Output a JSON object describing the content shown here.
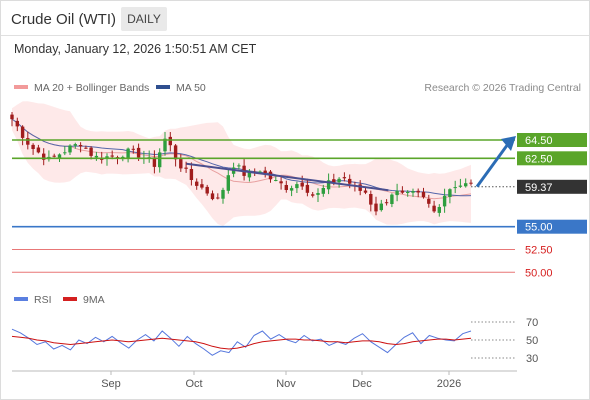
{
  "header": {
    "title": "Crude Oil (WTI)",
    "timeframe_badge": "DAILY",
    "timestamp": "Monday, January 12, 2026 1:50:51 AM CET"
  },
  "legend": {
    "ma20_label": "MA 20 + Bollinger Bands",
    "ma50_label": "MA 50",
    "credit": "Research © 2026 Trading Central",
    "rsi_label": "RSI",
    "rsi_ma_label": "9MA"
  },
  "colors": {
    "up_candle": "#2e9e3e",
    "down_candle": "#a01d1d",
    "bollinger_fill": "#fde2e2",
    "ma20": "#e8a0a0",
    "ma50": "#5566aa",
    "trendline": "#4a4f8f",
    "resistance": "#5aa52a",
    "pivot": "#3a77c8",
    "support": "#e87777",
    "price_box": "#333333",
    "arrow": "#2b6cb5",
    "rsi_line": "#5577dd",
    "rsi_ma_line": "#cc1111"
  },
  "chart_data": [
    {
      "type": "candlestick",
      "timeframe": "daily",
      "x_axis_labels": [
        "Sep",
        "Oct",
        "Nov",
        "Dec",
        "2026"
      ],
      "ylim": [
        48.5,
        69
      ],
      "grid": false,
      "levels": [
        {
          "value": 64.5,
          "label": "64.50",
          "kind": "resistance"
        },
        {
          "value": 62.5,
          "label": "62.50",
          "kind": "resistance"
        },
        {
          "value": 59.37,
          "label": "59.37",
          "kind": "last_price"
        },
        {
          "value": 55.0,
          "label": "55.00",
          "kind": "pivot"
        },
        {
          "value": 52.5,
          "label": "52.50",
          "kind": "support"
        },
        {
          "value": 50.0,
          "label": "50.00",
          "kind": "support"
        }
      ],
      "trendline": {
        "from": [
          61.9,
          0.38
        ],
        "to": [
          59.0,
          0.82
        ]
      },
      "forecast_arrow": {
        "from_value": 59.4,
        "to_value": 64.5,
        "direction": "up"
      },
      "series": [
        {
          "name": "MA 20 + Bollinger Bands",
          "kind": "ma20_bands"
        },
        {
          "name": "MA 50",
          "kind": "ma50"
        }
      ],
      "ohlc_path": [
        [
          0.0,
          66.8
        ],
        [
          0.04,
          63.8
        ],
        [
          0.08,
          62.3
        ],
        [
          0.12,
          63.5
        ],
        [
          0.15,
          64.2
        ],
        [
          0.18,
          62.6
        ],
        [
          0.22,
          62.7
        ],
        [
          0.25,
          63.2
        ],
        [
          0.28,
          62.9
        ],
        [
          0.31,
          61.8
        ],
        [
          0.335,
          64.8
        ],
        [
          0.36,
          62.2
        ],
        [
          0.39,
          60.2
        ],
        [
          0.42,
          59.0
        ],
        [
          0.45,
          57.8
        ],
        [
          0.48,
          62.0
        ],
        [
          0.51,
          60.6
        ],
        [
          0.54,
          61.3
        ],
        [
          0.57,
          60.0
        ],
        [
          0.6,
          59.3
        ],
        [
          0.63,
          59.9
        ],
        [
          0.66,
          58.2
        ],
        [
          0.69,
          59.7
        ],
        [
          0.72,
          60.5
        ],
        [
          0.75,
          59.1
        ],
        [
          0.77,
          58.8
        ],
        [
          0.79,
          56.8
        ],
        [
          0.81,
          57.5
        ],
        [
          0.83,
          58.9
        ],
        [
          0.855,
          58.3
        ],
        [
          0.88,
          58.6
        ],
        [
          0.9,
          57.9
        ],
        [
          0.92,
          56.6
        ],
        [
          0.94,
          58.4
        ],
        [
          0.96,
          59.6
        ]
      ]
    },
    {
      "type": "line",
      "title": "RSI",
      "ylim": [
        20,
        80
      ],
      "y_ticks": [
        30,
        50,
        70
      ],
      "series": [
        {
          "name": "RSI",
          "values": [
            62,
            58,
            52,
            45,
            48,
            40,
            44,
            39,
            50,
            46,
            53,
            48,
            54,
            47,
            41,
            50,
            56,
            49,
            60,
            52,
            43,
            54,
            46,
            40,
            33,
            38,
            36,
            48,
            42,
            55,
            60,
            51,
            56,
            50,
            47,
            55,
            49,
            51,
            44,
            48,
            45,
            52,
            57,
            48,
            42,
            36,
            45,
            53,
            58,
            46,
            55,
            52,
            50,
            49,
            57,
            60
          ]
        },
        {
          "name": "9MA",
          "values": [
            54,
            53,
            52,
            50,
            49,
            47,
            46,
            45,
            46,
            47,
            48,
            49,
            50,
            49,
            48,
            49,
            50,
            51,
            52,
            51,
            50,
            49,
            48,
            46,
            43,
            41,
            40,
            41,
            43,
            46,
            48,
            49,
            50,
            51,
            51,
            50,
            50,
            49,
            48,
            48,
            47,
            48,
            49,
            49,
            48,
            46,
            45,
            46,
            48,
            49,
            50,
            51,
            51,
            50,
            51,
            52
          ]
        }
      ]
    }
  ]
}
